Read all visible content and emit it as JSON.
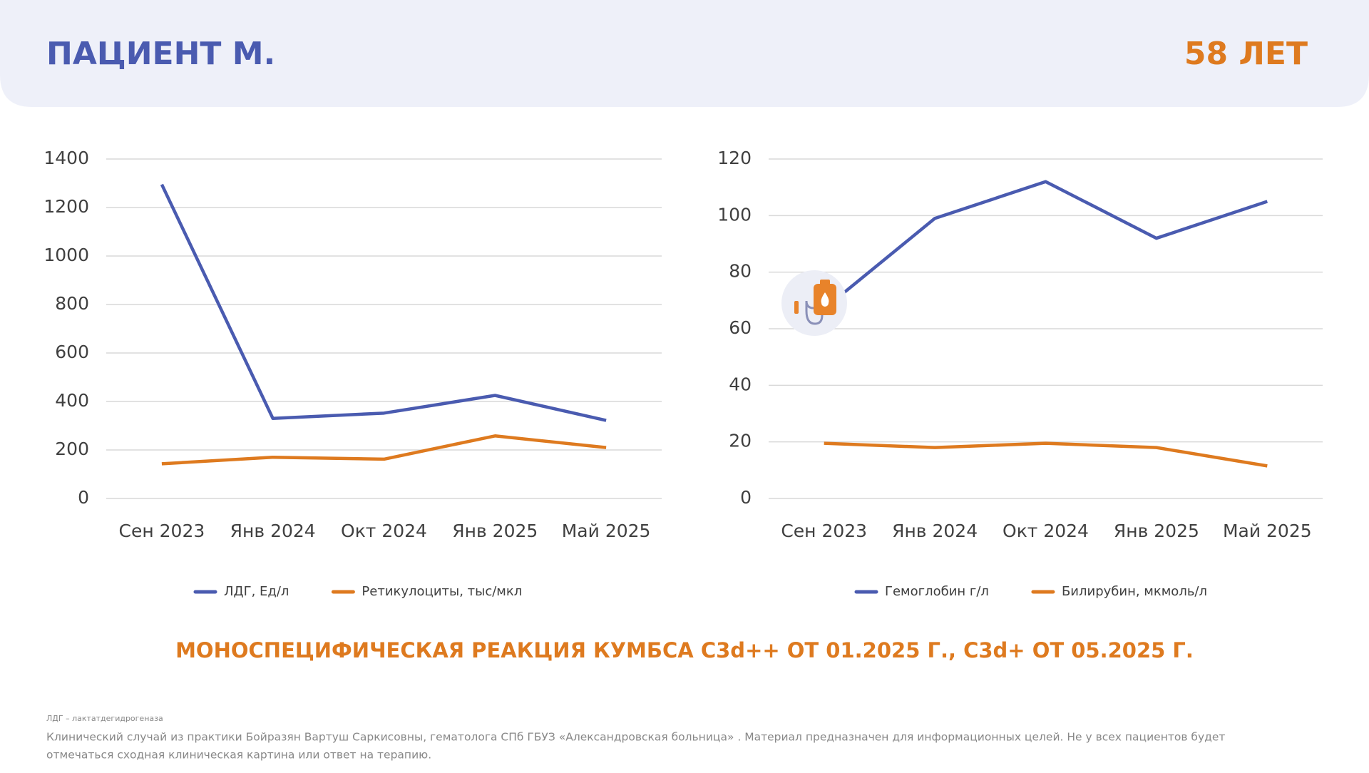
{
  "header": {
    "title": "ПАЦИЕНТ М.",
    "age": "58 ЛЕТ"
  },
  "chart_data": [
    {
      "type": "line",
      "categories": [
        "Сен 2023",
        "Янв 2024",
        "Окт 2024",
        "Янв 2025",
        "Май 2025"
      ],
      "series": [
        {
          "name": "ЛДГ, Ед/л",
          "color": "#4a5bb0",
          "values": [
            1295,
            330,
            352,
            425,
            322
          ]
        },
        {
          "name": "Ретикулоциты, тыс/мкл",
          "color": "#de7a1f",
          "values": [
            143,
            170,
            162,
            258,
            210
          ]
        }
      ],
      "ylim": [
        0,
        1400
      ],
      "yticks": [
        0,
        200,
        400,
        600,
        800,
        1000,
        1200,
        1400
      ],
      "grid": true,
      "legend": "bottom"
    },
    {
      "type": "line",
      "categories": [
        "Сен 2023",
        "Янв 2024",
        "Окт 2024",
        "Янв 2025",
        "Май 2025"
      ],
      "series": [
        {
          "name": "Гемоглобин г/л",
          "color": "#4a5bb0",
          "values": [
            67,
            99,
            112,
            92,
            105
          ]
        },
        {
          "name": "Билирубин, мкмоль/л",
          "color": "#de7a1f",
          "values": [
            19.5,
            18,
            19.5,
            18,
            11.5
          ]
        }
      ],
      "ylim": [
        0,
        120
      ],
      "yticks": [
        0,
        20,
        40,
        60,
        80,
        100,
        120
      ],
      "grid": true,
      "legend": "bottom"
    }
  ],
  "note": "МОНОСПЕЦИФИЧЕСКАЯ РЕАКЦИЯ КУМБСА С3d++ ОТ 01.2025 Г., С3d+ ОТ 05.2025 Г.",
  "footnote": {
    "abbreviation": "ЛДГ – лактатдегидрогеназа",
    "disclaimer": [
      "Клинический случай из практики Бойразян Вартуш Саркисовны, гематолога СПб ГБУЗ «Александровская больница» . Материал предназначен для информационных целей. Не у всех пациентов будет",
      "отмечаться сходная клиническая картина или ответ на терапию."
    ]
  }
}
